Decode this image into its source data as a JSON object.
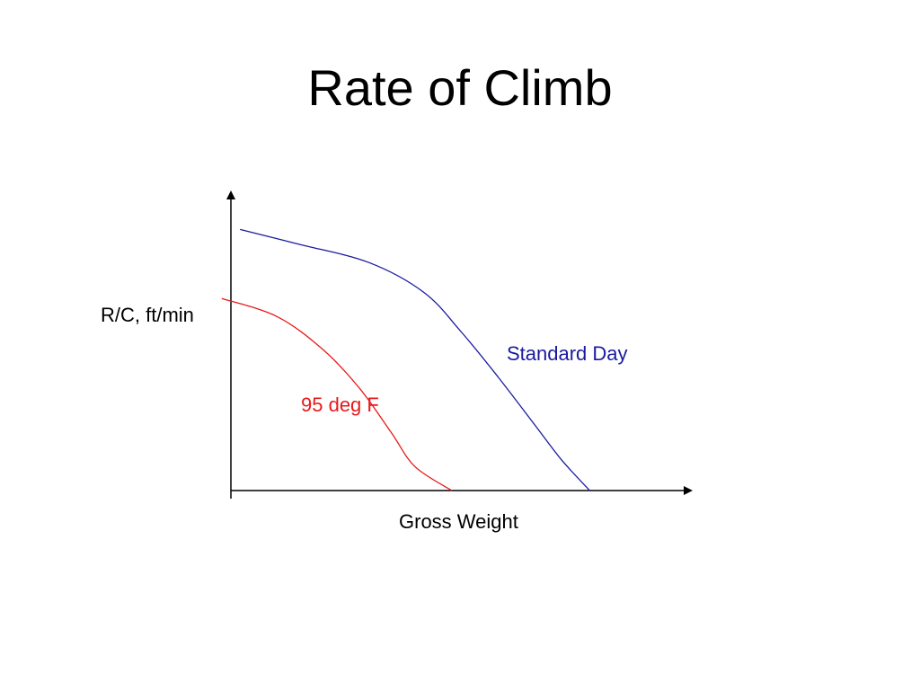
{
  "page": {
    "title": "Rate of Climb"
  },
  "chart_data": {
    "type": "line",
    "title": "Rate of Climb",
    "xlabel": "Gross Weight",
    "ylabel": "R/C, ft/min",
    "xlim": [
      0,
      100
    ],
    "ylim": [
      0,
      100
    ],
    "grid": false,
    "legend": "none",
    "axis_color": "#000000",
    "series": [
      {
        "name": "Standard Day",
        "color": "#1a1aa0",
        "points": [
          [
            2,
            87
          ],
          [
            15,
            82
          ],
          [
            30,
            76
          ],
          [
            42,
            66
          ],
          [
            50,
            53
          ],
          [
            58,
            38
          ],
          [
            66,
            22
          ],
          [
            72,
            10
          ],
          [
            78,
            0
          ]
        ]
      },
      {
        "name": "95 deg F",
        "color": "#e8191b",
        "points": [
          [
            -2,
            64
          ],
          [
            10,
            58
          ],
          [
            20,
            47
          ],
          [
            28,
            34
          ],
          [
            35,
            19
          ],
          [
            40,
            8
          ],
          [
            48,
            0
          ]
        ]
      }
    ]
  }
}
